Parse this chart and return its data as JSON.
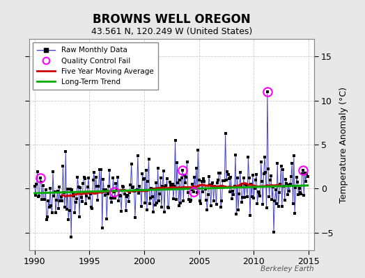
{
  "title": "BROWNS WELL OREGON",
  "subtitle": "43.561 N, 120.249 W (United States)",
  "ylabel": "Temperature Anomaly (°C)",
  "watermark": "Berkeley Earth",
  "xlim": [
    1989.5,
    2015.5
  ],
  "ylim": [
    -7,
    17
  ],
  "yticks": [
    -5,
    0,
    5,
    10,
    15
  ],
  "xticks": [
    1990,
    1995,
    2000,
    2005,
    2010,
    2015
  ],
  "bg_color": "#e8e8e8",
  "plot_bg_color": "#ffffff",
  "raw_line_color": "#4444cc",
  "raw_marker_color": "#000000",
  "moving_avg_color": "#cc0000",
  "trend_color": "#00aa00",
  "qc_fail_color": "#ff00ff",
  "seed": 42,
  "n_points": 300,
  "start_year": 1990.0,
  "end_year": 2014.92,
  "trend_slope": 0.035,
  "trend_intercept": -0.1,
  "spike_year": 2011.25,
  "spike_value": 11.0,
  "qc_fail_indices_years": [
    1990.5,
    1997.25,
    2003.5,
    2004.5,
    2011.25,
    2014.5
  ],
  "qc_fail_values": [
    1.2,
    -0.4,
    2.1,
    -0.4,
    11.0,
    2.1
  ]
}
